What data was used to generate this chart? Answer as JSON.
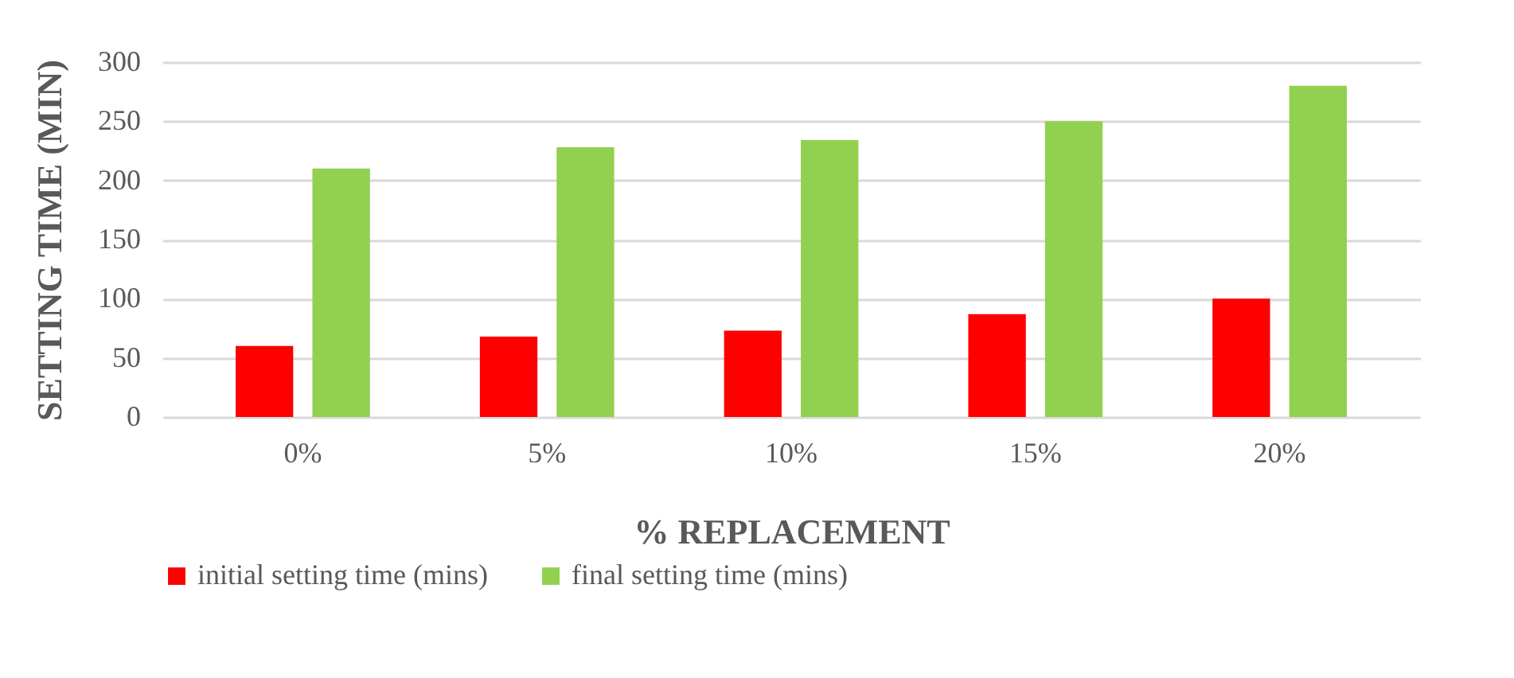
{
  "chart_data": {
    "type": "bar",
    "xlabel": "% REPLACEMENT",
    "ylabel": "SETTING TIME (MIN)",
    "categories": [
      "0%",
      "5%",
      "10%",
      "15%",
      "20%"
    ],
    "series": [
      {
        "name": "initial setting time (mins)",
        "color": "#ff0000",
        "values": [
          60,
          68,
          73,
          87,
          100
        ]
      },
      {
        "name": "final setting time (mins)",
        "color": "#92d050",
        "values": [
          210,
          228,
          234,
          250,
          280
        ]
      }
    ],
    "ylim": [
      0,
      300
    ],
    "yticks": [
      0,
      50,
      100,
      150,
      200,
      250,
      300
    ],
    "grid": "y",
    "legend": "bottom"
  }
}
